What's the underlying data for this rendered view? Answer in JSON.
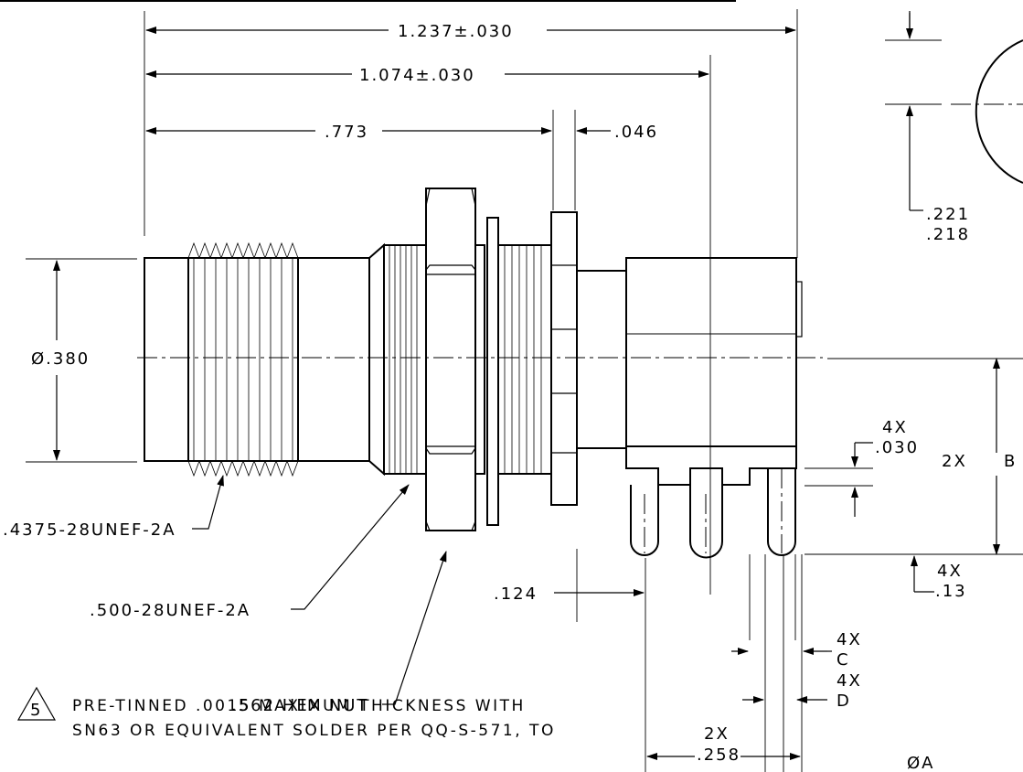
{
  "dimensions": {
    "overall_length": "1.237±.030",
    "mid_length": "1.074±.030",
    "thread_length": ".773",
    "washer_gap": ".046",
    "dia_top": ".221",
    "dia_bottom": ".218",
    "body_diameter": "Ø.380",
    "thread_callout_1": ".4375-28UNEF-2A",
    "thread_callout_2": ".500-28UNEF-2A",
    "hex_nut": ".562 HEX NUT",
    "pin_offset": ".124",
    "pin_step_qty": "4X",
    "pin_step": ".030",
    "bottom_height_qty": "2X",
    "bottom_height": "B",
    "pin_dia_qty": "4X",
    "pin_dia": "C",
    "pin_tip_qty": "4X",
    "pin_tip": ".13",
    "pin_width_qty": "4X",
    "pin_width": "D",
    "pin_spacing_qty": "2X",
    "pin_spacing": ".258",
    "bottom_dia": "ØA"
  },
  "note": {
    "number": "5",
    "line1": "PRE-TINNED .0015 MAXIMUM THICKNESS WITH",
    "line2": "SN63 OR EQUIVALENT SOLDER PER QQ-S-571, TO"
  }
}
